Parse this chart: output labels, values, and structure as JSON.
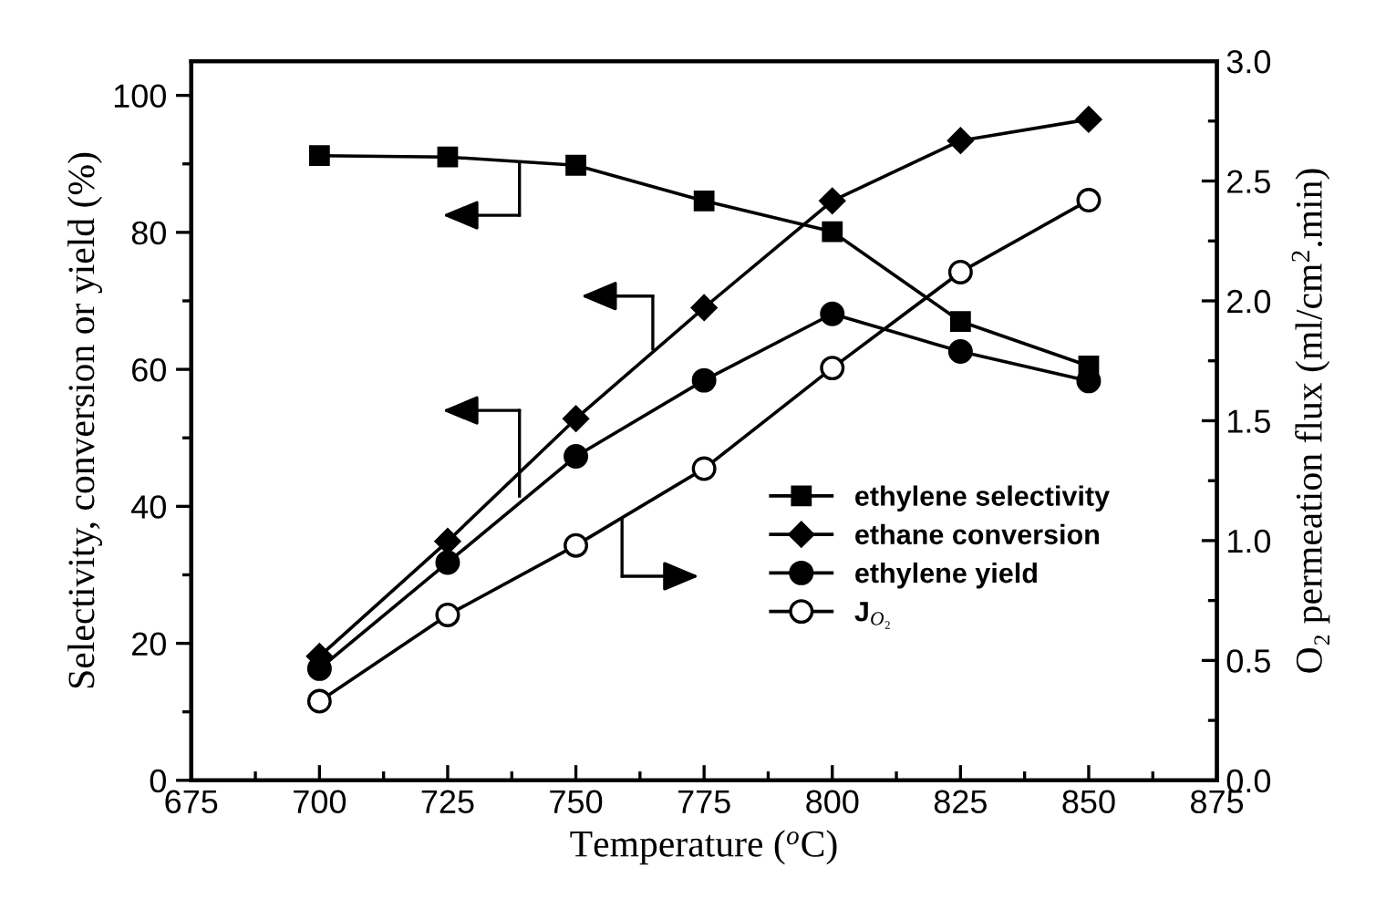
{
  "chart_data": {
    "type": "line",
    "xlabel": "Temperature ($^{o}$C)",
    "ylabel": "Selectivity, conversion or yield (%)",
    "y2label": "O₂ permeation flux (ml/cm$^{2}$.min)",
    "x": [
      700,
      725,
      750,
      775,
      800,
      825,
      850
    ],
    "series": [
      {
        "name": "ethylene selectivity",
        "color": "#000000",
        "marker": "square",
        "values": [
          91.2,
          91.0,
          89.8,
          84.6,
          80.1,
          67.0,
          60.5
        ]
      },
      {
        "name": "ethane conversion",
        "color": "#000000",
        "marker": "diamond",
        "values": [
          18.1,
          34.9,
          52.8,
          69.0,
          84.6,
          93.4,
          96.5
        ]
      },
      {
        "name": "ethylene yield",
        "color": "#000000",
        "marker": "circle",
        "values": [
          16.3,
          31.8,
          47.3,
          58.4,
          68.1,
          62.6,
          58.3
        ]
      },
      {
        "name": "J$_{O₂}$",
        "color": "#000000",
        "marker": "open circle",
        "axis": "y2",
        "values": [
          0.33,
          0.69,
          0.98,
          1.3,
          1.72,
          2.12,
          2.42
        ]
      }
    ],
    "xlim": [
      675,
      875
    ],
    "xticks": [
      675,
      700,
      725,
      750,
      775,
      800,
      825,
      850,
      875
    ],
    "ylim": [
      0,
      105
    ],
    "yticks": [
      0,
      20,
      40,
      60,
      80,
      100
    ],
    "y2lim": [
      0,
      3
    ],
    "y2ticks": [
      {
        "value": 0,
        "label": "0.0"
      },
      {
        "value": 0.5,
        "label": "0.5"
      },
      {
        "value": 1,
        "label": "1.0"
      },
      {
        "value": 1.5,
        "label": "1.5"
      },
      {
        "value": 2,
        "label": "2.0"
      },
      {
        "value": 2.5,
        "label": "2.5"
      },
      {
        "value": 3,
        "label": "3.0"
      }
    ],
    "grid": false,
    "legend": "right",
    "line_style": "solid"
  }
}
